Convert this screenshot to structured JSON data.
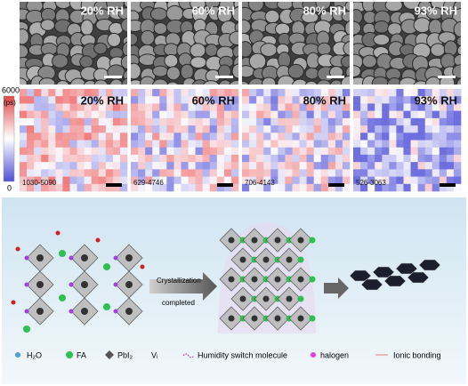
{
  "panels": [
    {
      "sem_label": "20% RH",
      "map_label": "20% RH",
      "range": "1030-5090"
    },
    {
      "sem_label": "60% RH",
      "map_label": "60% RH",
      "range": "629-4746"
    },
    {
      "sem_label": "80% RH",
      "map_label": "80% RH",
      "range": "706-4143"
    },
    {
      "sem_label": "93% RH",
      "map_label": "93% RH",
      "range": "526-3063"
    }
  ],
  "colorbar": {
    "max": "6000",
    "unit": "(ps)",
    "min": "0"
  },
  "schematic": {
    "arrow_label_1": "Crystallization",
    "arrow_label_2": "completed"
  },
  "legend": [
    "H₂O",
    "FA",
    "PbI₂",
    "Vᵢ",
    "Humidity switch molecule",
    "halogen",
    "Ionic bonding"
  ]
}
